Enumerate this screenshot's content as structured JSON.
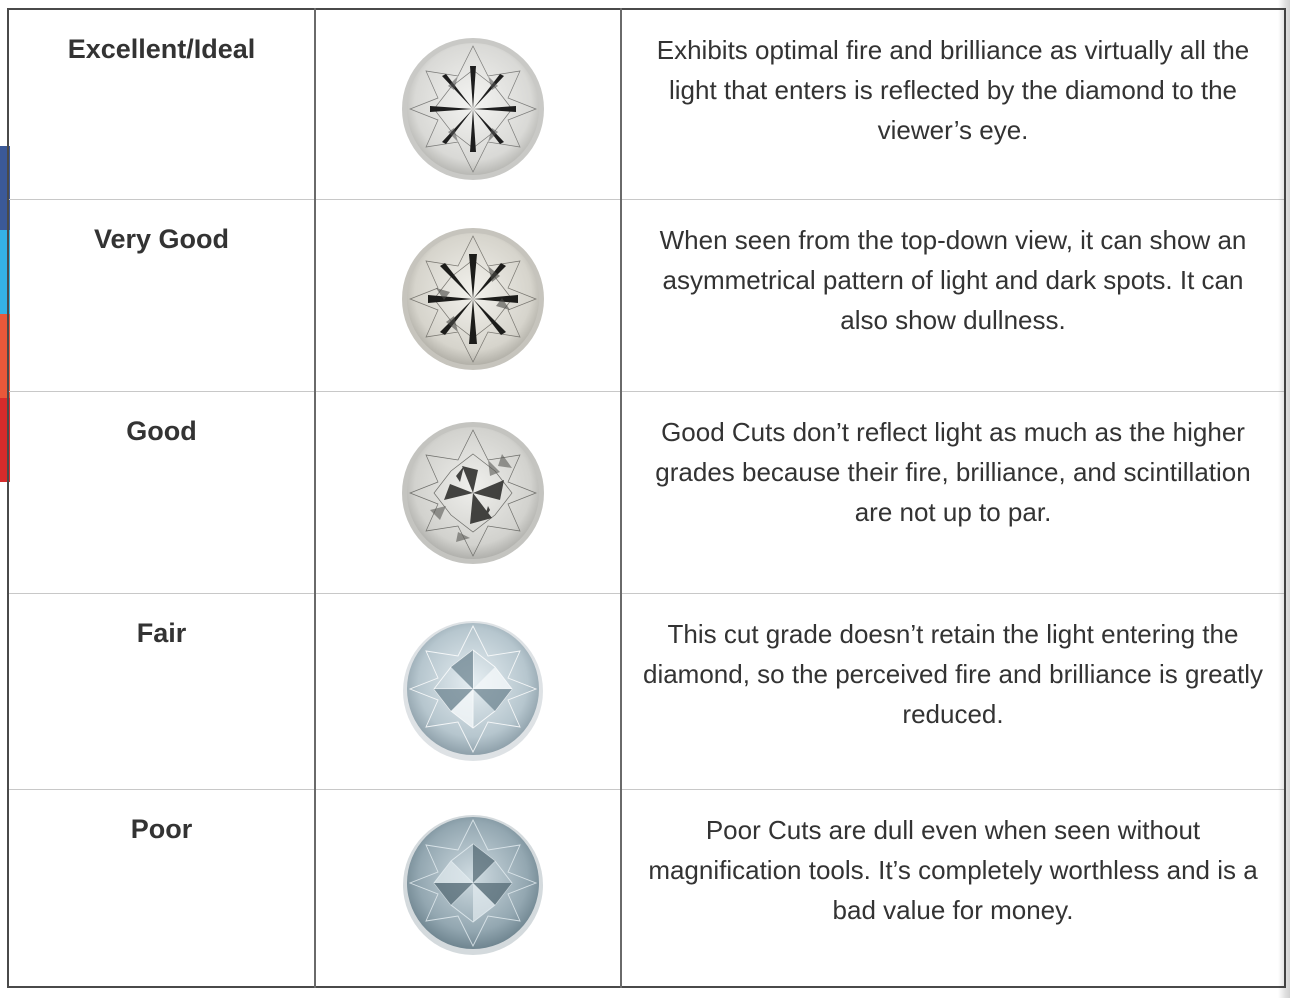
{
  "share": {
    "icons": [
      "facebook-icon",
      "twitter-icon",
      "google-plus-icon",
      "pinterest-icon"
    ],
    "colors": [
      "#3b5998",
      "#35b1e4",
      "#e8583a",
      "#d62b2b"
    ]
  },
  "grades": [
    {
      "name": "Excellent/Ideal",
      "description": "Exhibits optimal fire and brilliance as virtually all the light that enters is reflected by the diamond to the viewer’s eye."
    },
    {
      "name": "Very Good",
      "description": "When seen from the top-down view, it can show an asymmetrical pattern of light and dark spots. It can also show dullness."
    },
    {
      "name": "Good",
      "description": "Good Cuts don’t reflect light as much as the higher grades because their fire, brilliance, and scintillation are not up to par."
    },
    {
      "name": "Fair",
      "description": "This cut grade doesn’t retain the light entering the diamond, so the perceived fire and brilliance is greatly reduced."
    },
    {
      "name": "Poor",
      "description": "Poor Cuts are dull even when seen without magnification tools. It’s completely worthless and is a bad value for money."
    }
  ]
}
